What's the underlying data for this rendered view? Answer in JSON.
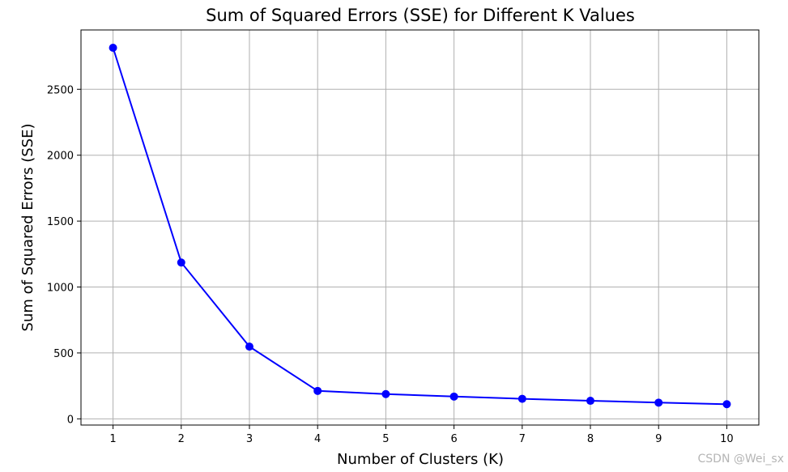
{
  "chart_data": {
    "type": "line",
    "title": "Sum of Squared Errors (SSE) for Different K Values",
    "xlabel": "Number of Clusters (K)",
    "ylabel": "Sum of Squared Errors (SSE)",
    "x": [
      1,
      2,
      3,
      4,
      5,
      6,
      7,
      8,
      9,
      10
    ],
    "series": [
      {
        "values": [
          2815,
          1186,
          548,
          212,
          188,
          169,
          152,
          137,
          123,
          111
        ],
        "color": "#0000ff",
        "marker": "circle"
      }
    ],
    "xlim": [
      0.53,
      10.47
    ],
    "ylim": [
      -47,
      2950
    ],
    "xticks": [
      1,
      2,
      3,
      4,
      5,
      6,
      7,
      8,
      9,
      10
    ],
    "yticks": [
      0,
      500,
      1000,
      1500,
      2000,
      2500
    ],
    "grid": true,
    "legend": null
  },
  "watermark": "CSDN @Wei_sx"
}
